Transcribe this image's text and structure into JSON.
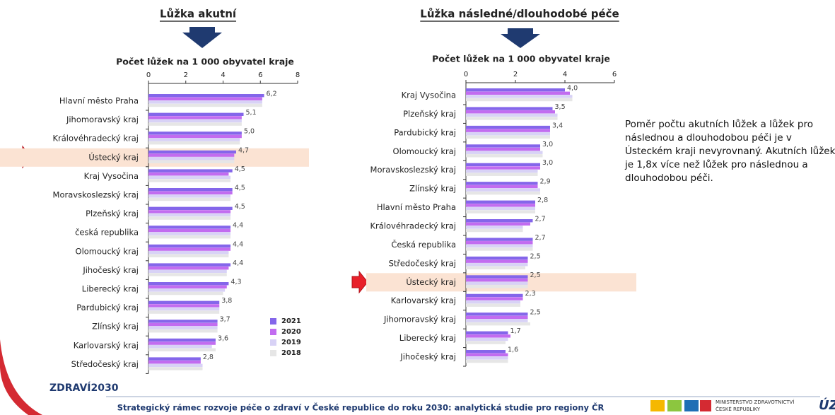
{
  "chart_data": [
    {
      "type": "bar",
      "orientation": "horizontal",
      "heading": "Lůžka akutní",
      "title": "Počet lůžek na 1 000 obyvatel kraje",
      "categories": [
        "Hlavní město Praha",
        "Jihomoravský kraj",
        "Královéhradecký kraj",
        "Ústecký kraj",
        "Kraj Vysočina",
        "Moravskoslezský kraj",
        "Plzeňský kraj",
        "česká republika",
        "Olomoucký kraj",
        "Jihočeský kraj",
        "Liberecký kraj",
        "Pardubický kraj",
        "Zlínský kraj",
        "Karlovarský kraj",
        "Středočeský kraj"
      ],
      "series": [
        {
          "name": "2021",
          "color": "#8466ea",
          "values": [
            6.2,
            5.1,
            5.0,
            4.7,
            4.5,
            4.5,
            4.5,
            4.4,
            4.4,
            4.4,
            4.3,
            3.8,
            3.7,
            3.6,
            2.8
          ],
          "value_labels": [
            "6,2",
            "5,1",
            "5,0",
            "4,7",
            "4,5",
            "4,5",
            "4,5",
            "4,4",
            "4,4",
            "4,4",
            "4,3",
            "3,8",
            "3,7",
            "3,6",
            "2,8"
          ]
        },
        {
          "name": "2020",
          "color": "#c26cf0",
          "values": [
            6.1,
            5.0,
            5.0,
            4.6,
            4.3,
            4.5,
            4.4,
            4.4,
            4.4,
            4.3,
            4.2,
            3.8,
            3.7,
            3.6,
            2.8
          ]
        },
        {
          "name": "2019",
          "color": "#d8d2f6",
          "values": [
            6.1,
            5.0,
            4.9,
            4.6,
            4.4,
            4.4,
            4.4,
            4.4,
            4.3,
            4.2,
            4.1,
            3.8,
            3.7,
            3.4,
            2.9
          ]
        },
        {
          "name": "2018",
          "color": "#e6e6e6",
          "values": [
            6.1,
            5.0,
            4.9,
            4.6,
            4.4,
            4.4,
            4.4,
            4.4,
            4.3,
            4.2,
            4.0,
            3.8,
            3.7,
            3.6,
            2.9
          ]
        }
      ],
      "xlim": [
        0,
        8
      ],
      "xticks": [
        0,
        2,
        4,
        6,
        8
      ],
      "highlight": 3,
      "legend": "bottom-right"
    },
    {
      "type": "bar",
      "orientation": "horizontal",
      "heading": "Lůžka následné/dlouhodobé péče",
      "title": "Počet lůžek na 1 000 obyvatel kraje",
      "categories": [
        "Kraj Vysočina",
        "Plzeňský kraj",
        "Pardubický kraj",
        "Olomoucký kraj",
        "Moravskoslezský kraj",
        "Zlínský kraj",
        "Hlavní město Praha",
        "Královéhradecký kraj",
        "Česká republika",
        "Středočeský kraj",
        "Ústecký kraj",
        "Karlovarský kraj",
        "Jihomoravský kraj",
        "Liberecký kraj",
        "Jihočeský kraj"
      ],
      "series": [
        {
          "name": "2021",
          "color": "#8466ea",
          "values": [
            4.0,
            3.5,
            3.4,
            3.0,
            3.0,
            2.9,
            2.8,
            2.7,
            2.7,
            2.5,
            2.5,
            2.3,
            2.5,
            1.7,
            1.6
          ],
          "value_labels": [
            "4,0",
            "3,5",
            "3,4",
            "3,0",
            "3,0",
            "2,9",
            "2,8",
            "2,7",
            "2,7",
            "2,5",
            "2,5",
            "2,3",
            "2,5",
            "1,7",
            "1,6"
          ]
        },
        {
          "name": "2020",
          "color": "#c26cf0",
          "values": [
            4.2,
            3.6,
            3.4,
            3.0,
            3.0,
            2.9,
            2.8,
            2.6,
            2.7,
            2.5,
            2.5,
            2.3,
            2.5,
            1.8,
            1.7
          ]
        },
        {
          "name": "2019",
          "color": "#d8d2f6",
          "values": [
            4.3,
            3.7,
            3.4,
            3.1,
            2.9,
            3.0,
            2.8,
            2.3,
            2.7,
            2.5,
            2.5,
            2.2,
            2.5,
            1.7,
            1.7
          ]
        },
        {
          "name": "2018",
          "color": "#e6e6e6",
          "values": [
            4.3,
            3.7,
            3.4,
            3.1,
            2.9,
            3.0,
            2.8,
            2.3,
            2.7,
            2.4,
            2.5,
            2.2,
            2.6,
            1.6,
            1.7
          ]
        }
      ],
      "xlim": [
        0,
        6
      ],
      "xticks": [
        0,
        2,
        4,
        6
      ],
      "highlight": 10
    }
  ],
  "note": "Poměr počtu akutních lůžek a lůžek pro následnou a dlouhodobou péči je v Ústeckém kraji nevyrovnaný. Akutních lůžek je 1,8x více než lůžek pro následnou a dlouhodobou péči.",
  "footer": {
    "text": "Strategický rámec rozvoje péče o zdraví v České republice do roku 2030: analytická studie pro regiony ČR",
    "logo": "ZDRAVÍ2030",
    "ministry": [
      "MINISTERSTVO ZDRAVOTNICTVÍ",
      "ČESKÉ REPUBLIKY"
    ],
    "uzis": "ÚZ"
  }
}
